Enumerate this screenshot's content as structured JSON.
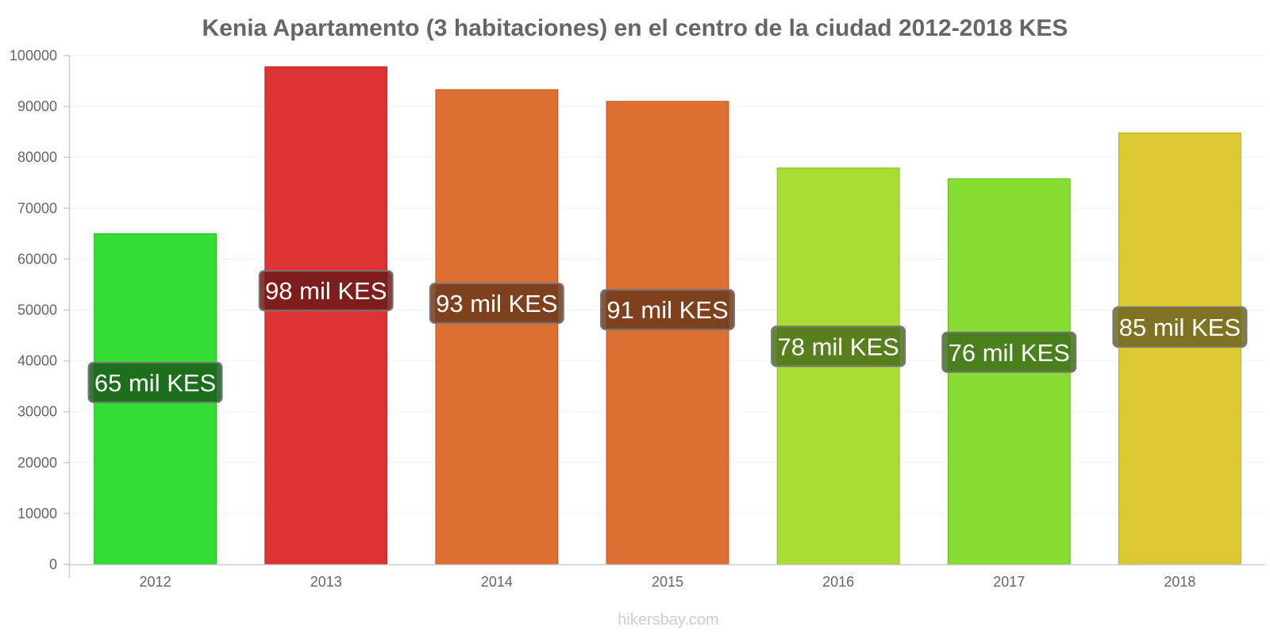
{
  "chart_data": {
    "type": "bar",
    "title": "Kenia Apartamento (3 habitaciones) en el centro de la ciudad 2012-2018 KES",
    "xlabel": "",
    "ylabel": "",
    "ylim": [
      0,
      100000
    ],
    "yticks": [
      "0",
      "10000",
      "20000",
      "30000",
      "40000",
      "50000",
      "60000",
      "70000",
      "80000",
      "90000",
      "100000"
    ],
    "grid": true,
    "categories": [
      "2012",
      "2013",
      "2014",
      "2015",
      "2016",
      "2017",
      "2018"
    ],
    "values": [
      65000,
      97800,
      93300,
      91000,
      77900,
      75800,
      84800
    ],
    "labels": [
      "65 mil KES",
      "98 mil KES",
      "93 mil KES",
      "91 mil KES",
      "78 mil KES",
      "76 mil KES",
      "85 mil KES"
    ],
    "colors": [
      "#33dd33",
      "#dd3333",
      "#dd6f33",
      "#dd6f33",
      "#aadd33",
      "#88dd33",
      "#dcc833"
    ],
    "borders": [
      "#22bb22",
      "#bb2222",
      "#c05520",
      "#c05520",
      "#88bb22",
      "#66bb22",
      "#bbaa22"
    ],
    "label_backgrounds": [
      "#1a5c1a",
      "#6e1a1a",
      "#6e3a1a",
      "#6e3a1a",
      "#4a6e1a",
      "#3e6e1a",
      "#6e6420"
    ]
  },
  "watermark": "hikersbay.com"
}
